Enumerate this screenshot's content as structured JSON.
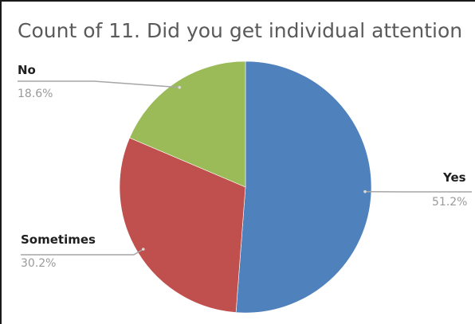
{
  "chart_data": {
    "type": "pie",
    "title": "Count of 11. Did you get individual attention",
    "categories": [
      "Yes",
      "Sometimes",
      "No"
    ],
    "values": [
      51.2,
      30.2,
      18.6
    ],
    "labels": [
      "51.2%",
      "30.2%",
      "18.6%"
    ],
    "colors": [
      "#4f81bd",
      "#c0504d",
      "#9bbb59"
    ],
    "start_angle_deg": 0,
    "direction": "clockwise",
    "legend": "none",
    "data_labels": "outside-with-leader-lines"
  }
}
